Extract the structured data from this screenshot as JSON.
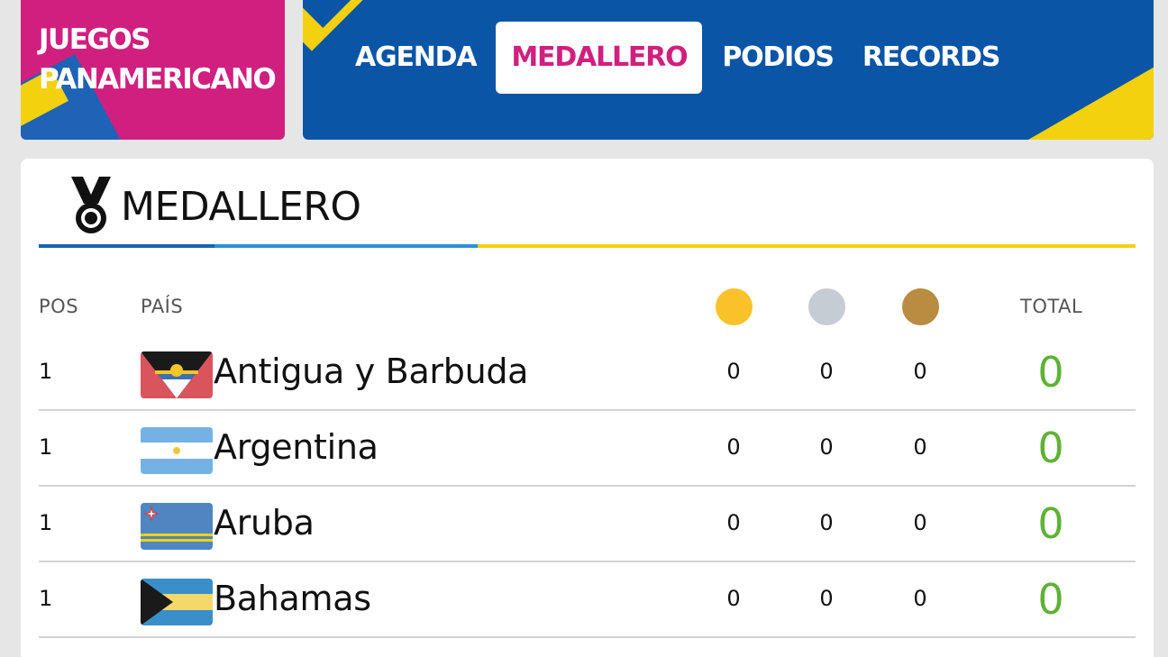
{
  "brand": {
    "title": "JUEGOS PANAMERICANO"
  },
  "nav": {
    "tabs": [
      {
        "label": "AGENDA",
        "active": false
      },
      {
        "label": "MEDALLERO",
        "active": true
      },
      {
        "label": "PODIOS",
        "active": false
      },
      {
        "label": "RECORDS",
        "active": false
      }
    ]
  },
  "panel": {
    "title": "MEDALLERO",
    "icon": "medal-icon"
  },
  "table": {
    "headers": {
      "pos": "POS",
      "country": "PAÍS",
      "total": "TOTAL"
    },
    "medal_colors": {
      "gold": "#f9c22a",
      "silver": "#c5ccd3",
      "bronze": "#b98c42"
    },
    "total_color": "#5fb236",
    "rows": [
      {
        "pos": "1",
        "country": "Antigua y Barbuda",
        "flag": "antigua-barbuda-flag",
        "gold": "0",
        "silver": "0",
        "bronze": "0",
        "total": "0"
      },
      {
        "pos": "1",
        "country": "Argentina",
        "flag": "argentina-flag",
        "gold": "0",
        "silver": "0",
        "bronze": "0",
        "total": "0"
      },
      {
        "pos": "1",
        "country": "Aruba",
        "flag": "aruba-flag",
        "gold": "0",
        "silver": "0",
        "bronze": "0",
        "total": "0"
      },
      {
        "pos": "1",
        "country": "Bahamas",
        "flag": "bahamas-flag",
        "gold": "0",
        "silver": "0",
        "bronze": "0",
        "total": "0"
      }
    ]
  }
}
